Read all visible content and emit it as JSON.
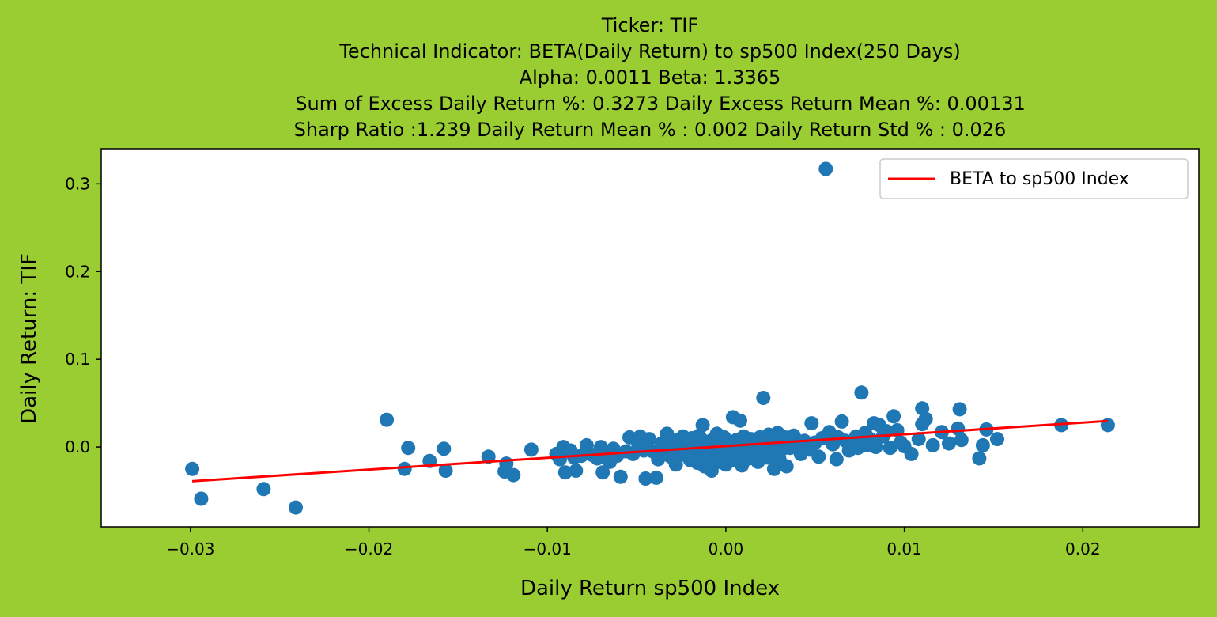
{
  "chart_data": {
    "type": "scatter",
    "title_lines": [
      "Ticker: TIF",
      "Technical Indicator: BETA(Daily Return) to sp500 Index(250 Days)",
      "Alpha: 0.0011   Beta: 1.3365",
      "Sum of Excess Daily Return %: 0.3273   Daily Excess Return Mean %: 0.00131",
      "Sharp Ratio :1.239     Daily Return Mean % : 0.002     Daily Return Std % : 0.026"
    ],
    "xlabel": "Daily Return sp500 Index",
    "ylabel": "Daily Return: TIF",
    "xlim": [
      -0.035,
      0.0265
    ],
    "ylim": [
      -0.091,
      0.34
    ],
    "x_ticks": [
      -0.03,
      -0.02,
      -0.01,
      0.0,
      0.01,
      0.02
    ],
    "x_tick_labels": [
      "−0.03",
      "−0.02",
      "−0.01",
      "0.00",
      "0.01",
      "0.02"
    ],
    "y_ticks": [
      0.0,
      0.1,
      0.2,
      0.3
    ],
    "y_tick_labels": [
      "0.0",
      "0.1",
      "0.2",
      "0.3"
    ],
    "grid": false,
    "legend_position": "top-right",
    "colors": {
      "background": "#9acd32",
      "plot_area": "#ffffff",
      "points": "#1f77b4",
      "line": "#ff0000"
    },
    "series": [
      {
        "name": "",
        "type": "scatter",
        "points": [
          [
            -0.0299,
            -0.025
          ],
          [
            -0.0294,
            -0.059
          ],
          [
            -0.0259,
            -0.048
          ],
          [
            -0.0241,
            -0.069
          ],
          [
            -0.019,
            0.031
          ],
          [
            -0.018,
            -0.025
          ],
          [
            -0.0178,
            -0.001
          ],
          [
            -0.0166,
            -0.016
          ],
          [
            -0.0158,
            -0.002
          ],
          [
            -0.0157,
            -0.027
          ],
          [
            -0.0133,
            -0.011
          ],
          [
            -0.0124,
            -0.028
          ],
          [
            -0.0123,
            -0.019
          ],
          [
            -0.0119,
            -0.032
          ],
          [
            -0.0109,
            -0.003
          ],
          [
            -0.0095,
            -0.008
          ],
          [
            -0.0093,
            -0.014
          ],
          [
            -0.0091,
            0.0
          ],
          [
            -0.009,
            -0.029
          ],
          [
            -0.0087,
            -0.004
          ],
          [
            -0.0085,
            -0.012
          ],
          [
            -0.0084,
            -0.027
          ],
          [
            -0.0081,
            -0.01
          ],
          [
            -0.0078,
            0.002
          ],
          [
            -0.0075,
            -0.009
          ],
          [
            -0.0072,
            -0.013
          ],
          [
            -0.007,
            0.0
          ],
          [
            -0.0069,
            -0.029
          ],
          [
            -0.0067,
            -0.006
          ],
          [
            -0.0065,
            -0.017
          ],
          [
            -0.0063,
            -0.002
          ],
          [
            -0.0061,
            -0.01
          ],
          [
            -0.0059,
            -0.034
          ],
          [
            -0.0056,
            -0.005
          ],
          [
            -0.0054,
            0.011
          ],
          [
            -0.0052,
            -0.008
          ],
          [
            -0.0049,
            0.001
          ],
          [
            -0.0048,
            0.012
          ],
          [
            -0.0046,
            -0.004
          ],
          [
            -0.0045,
            -0.036
          ],
          [
            -0.0043,
            0.009
          ],
          [
            -0.0041,
            -0.005
          ],
          [
            -0.0039,
            -0.035
          ],
          [
            -0.0038,
            -0.014
          ],
          [
            -0.0036,
            0.004
          ],
          [
            -0.0034,
            -0.007
          ],
          [
            -0.0033,
            0.015
          ],
          [
            -0.0031,
            -0.011
          ],
          [
            -0.003,
            0.002
          ],
          [
            -0.0028,
            -0.02
          ],
          [
            -0.0027,
            0.008
          ],
          [
            -0.0025,
            -0.003
          ],
          [
            -0.0024,
            0.012
          ],
          [
            -0.0023,
            -0.009
          ],
          [
            -0.0022,
            0.004
          ],
          [
            -0.002,
            -0.015
          ],
          [
            -0.0019,
            0.01
          ],
          [
            -0.0018,
            -0.006
          ],
          [
            -0.0017,
            0.001
          ],
          [
            -0.0016,
            -0.018
          ],
          [
            -0.0015,
            0.013
          ],
          [
            -0.0014,
            -0.004
          ],
          [
            -0.0013,
            0.025
          ],
          [
            -0.0012,
            -0.022
          ],
          [
            -0.0011,
            0.006
          ],
          [
            -0.001,
            -0.012
          ],
          [
            -0.0009,
            0.002
          ],
          [
            -0.0008,
            -0.027
          ],
          [
            -0.0007,
            0.009
          ],
          [
            -0.0006,
            -0.008
          ],
          [
            -0.0005,
            0.015
          ],
          [
            -0.0004,
            -0.017
          ],
          [
            -0.0003,
            0.003
          ],
          [
            -0.0002,
            -0.006
          ],
          [
            -0.0001,
            0.011
          ],
          [
            0.0,
            -0.02
          ],
          [
            0.0001,
            0.005
          ],
          [
            0.0002,
            -0.01
          ],
          [
            0.0003,
            0.001
          ],
          [
            0.0004,
            0.034
          ],
          [
            0.0005,
            -0.015
          ],
          [
            0.0006,
            0.008
          ],
          [
            0.0007,
            -0.003
          ],
          [
            0.0008,
            0.03
          ],
          [
            0.0009,
            -0.021
          ],
          [
            0.001,
            0.012
          ],
          [
            0.0011,
            -0.007
          ],
          [
            0.0012,
            0.004
          ],
          [
            0.0013,
            -0.013
          ],
          [
            0.0014,
            0.009
          ],
          [
            0.0015,
            -0.004
          ],
          [
            0.0016,
            0.001
          ],
          [
            0.0018,
            -0.017
          ],
          [
            0.0019,
            0.011
          ],
          [
            0.002,
            -0.009
          ],
          [
            0.0021,
            0.056
          ],
          [
            0.0022,
            0.003
          ],
          [
            0.0023,
            -0.012
          ],
          [
            0.0024,
            0.014
          ],
          [
            0.0025,
            -0.005
          ],
          [
            0.0026,
            0.007
          ],
          [
            0.0027,
            -0.025
          ],
          [
            0.0028,
            0.002
          ],
          [
            0.0029,
            0.016
          ],
          [
            0.003,
            -0.014
          ],
          [
            0.0031,
            0.005
          ],
          [
            0.0032,
            -0.002
          ],
          [
            0.0033,
            0.011
          ],
          [
            0.0034,
            -0.022
          ],
          [
            0.0035,
            0.009
          ],
          [
            0.0036,
            -0.001
          ],
          [
            0.0038,
            0.013
          ],
          [
            0.004,
            0.004
          ],
          [
            0.0042,
            -0.008
          ],
          [
            0.0044,
            0.007
          ],
          [
            0.0046,
            0.002
          ],
          [
            0.0047,
            -0.003
          ],
          [
            0.0048,
            0.027
          ],
          [
            0.005,
            0.005
          ],
          [
            0.0052,
            -0.011
          ],
          [
            0.0054,
            0.01
          ],
          [
            0.0056,
            0.317
          ],
          [
            0.0058,
            0.017
          ],
          [
            0.006,
            0.003
          ],
          [
            0.0062,
            -0.014
          ],
          [
            0.0063,
            0.011
          ],
          [
            0.0065,
            0.029
          ],
          [
            0.0067,
            0.007
          ],
          [
            0.0069,
            -0.004
          ],
          [
            0.0071,
            0.006
          ],
          [
            0.0073,
            0.012
          ],
          [
            0.0074,
            -0.001
          ],
          [
            0.0076,
            0.062
          ],
          [
            0.0078,
            0.016
          ],
          [
            0.0079,
            0.002
          ],
          [
            0.0081,
            0.009
          ],
          [
            0.0083,
            0.027
          ],
          [
            0.0084,
            0.0
          ],
          [
            0.0086,
            0.025
          ],
          [
            0.0088,
            0.012
          ],
          [
            0.009,
            0.018
          ],
          [
            0.0092,
            -0.001
          ],
          [
            0.0094,
            0.035
          ],
          [
            0.0096,
            0.019
          ],
          [
            0.0098,
            0.005
          ],
          [
            0.01,
            0.001
          ],
          [
            0.0104,
            -0.008
          ],
          [
            0.0108,
            0.009
          ],
          [
            0.011,
            0.026
          ],
          [
            0.011,
            0.044
          ],
          [
            0.0112,
            0.032
          ],
          [
            0.0116,
            0.002
          ],
          [
            0.0121,
            0.017
          ],
          [
            0.0125,
            0.004
          ],
          [
            0.013,
            0.021
          ],
          [
            0.0131,
            0.043
          ],
          [
            0.0132,
            0.008
          ],
          [
            0.0142,
            -0.013
          ],
          [
            0.0144,
            0.002
          ],
          [
            0.0146,
            0.02
          ],
          [
            0.0152,
            0.009
          ],
          [
            0.0188,
            0.025
          ],
          [
            0.0214,
            0.025
          ]
        ]
      },
      {
        "name": "BETA to sp500 Index",
        "type": "line",
        "x": [
          -0.0299,
          0.0214
        ],
        "y": [
          -0.039,
          0.0297
        ]
      }
    ]
  }
}
